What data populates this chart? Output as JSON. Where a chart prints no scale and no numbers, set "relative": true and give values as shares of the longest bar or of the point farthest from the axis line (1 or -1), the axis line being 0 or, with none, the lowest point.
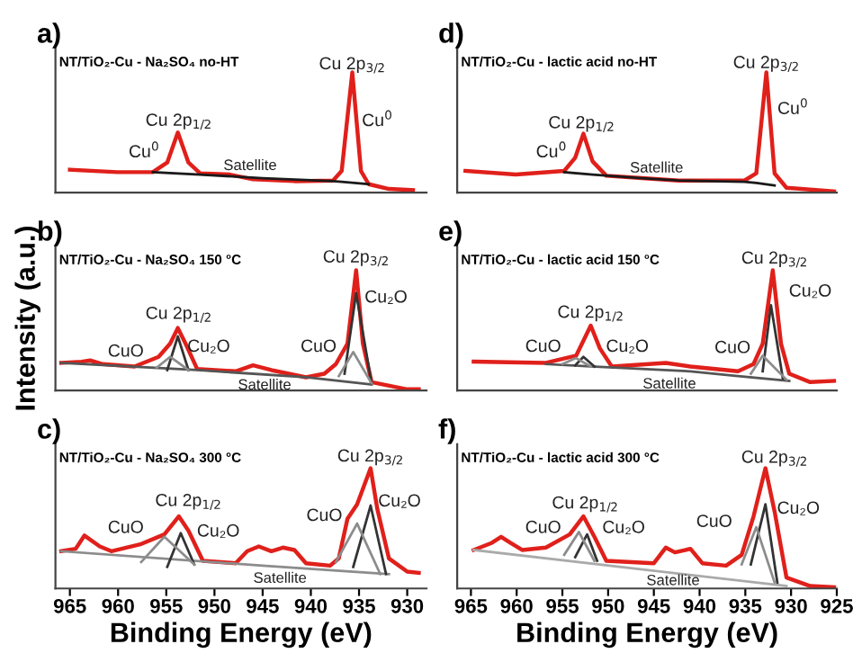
{
  "chart_data": [
    {
      "type": "line",
      "title": "a)",
      "subtitle": "NT/TiO₂-Cu - Na₂SO₄ no-HT",
      "relative": true,
      "xlim": [
        966.5,
        928
      ],
      "tick_labels": false,
      "series": [
        {
          "color": "#e0201b",
          "x": [
            965,
            960.1,
            956.4,
            954.9,
            953.8,
            952.7,
            951.5,
            948.4,
            946.0,
            941.7,
            937.7,
            936.8,
            935.7,
            934.8,
            934.0,
            931.9,
            929.4
          ],
          "values": [
            0.19,
            0.17,
            0.17,
            0.25,
            0.5,
            0.25,
            0.16,
            0.15,
            0.11,
            0.095,
            0.1,
            0.18,
            1.0,
            0.18,
            0.07,
            0.03,
            0.02
          ]
        },
        {
          "color": "#1a1a1a",
          "x": [
            956.4,
            951.5,
            945.0,
            937.7,
            936.8,
            934.0
          ],
          "values": [
            0.17,
            0.15,
            0.12,
            0.095,
            0.09,
            0.07
          ]
        }
      ],
      "annotations": [
        "Cu 2p$_{1/2}$",
        "Cu$^{0}$",
        "Satellite",
        "Cu 2p$_{3/2}$",
        "Cu$^{0}$"
      ]
    },
    {
      "type": "line",
      "title": "d)",
      "subtitle": "NT/TiO₂-Cu - lactic acid no-HT",
      "relative": true,
      "xlim": [
        966.5,
        925
      ],
      "tick_labels": false,
      "series": [
        {
          "color": "#e0201b",
          "x": [
            965.6,
            960.1,
            954.8,
            953.6,
            952.7,
            951.7,
            950.2,
            946.3,
            942.3,
            935.1,
            933.8,
            932.7,
            931.8,
            930.5,
            925.3
          ],
          "values": [
            0.18,
            0.15,
            0.18,
            0.29,
            0.49,
            0.26,
            0.14,
            0.12,
            0.1,
            0.1,
            0.16,
            1.0,
            0.16,
            0.04,
            0.01
          ]
        },
        {
          "color": "#1a1a1a",
          "x": [
            954.8,
            951.7,
            946.3,
            942.3,
            935.1,
            933.8,
            931.8
          ],
          "values": [
            0.17,
            0.15,
            0.12,
            0.1,
            0.09,
            0.08,
            0.06
          ]
        }
      ],
      "annotations": [
        "Cu 2p$_{1/2}$",
        "Cu$^{0}$",
        "Satellite",
        "Cu 2p$_{3/2}$",
        "Cu$^{0}$"
      ]
    },
    {
      "type": "line",
      "title": "b)",
      "subtitle": "NT/TiO₂-Cu - Na₂SO₄ 150 °C",
      "ylabel": "Intensity (a.u.)",
      "relative": true,
      "xlim": [
        966.5,
        928
      ],
      "tick_labels": false,
      "series": [
        {
          "color": "#e0201b",
          "x": [
            965.9,
            963.8,
            962.9,
            961.6,
            958.3,
            955.8,
            954.6,
            953.8,
            953.0,
            951.8,
            947.8,
            946.0,
            944.1,
            940.5,
            938.6,
            937.4,
            936.2,
            935.3,
            934.6,
            933.7,
            930.0,
            928.8
          ],
          "values": [
            0.23,
            0.24,
            0.25,
            0.22,
            0.2,
            0.28,
            0.39,
            0.52,
            0.39,
            0.18,
            0.16,
            0.21,
            0.17,
            0.11,
            0.14,
            0.22,
            0.39,
            1.0,
            0.39,
            0.07,
            0.01,
            0.01
          ]
        },
        {
          "color": "#555555",
          "x": [
            965.9,
            951.8,
            940.5,
            933.7
          ],
          "values": [
            0.23,
            0.17,
            0.11,
            0.05
          ]
        },
        {
          "color": "#333333",
          "x": [
            954.9,
            953.8,
            952.7,
            944.0,
            936.5,
            935.3,
            933.7
          ],
          "values": [
            0.17,
            0.45,
            0.17,
            null,
            0.14,
            0.81,
            0.06
          ]
        },
        {
          "color": "#8c8c8c",
          "x": [
            956.0,
            954.6,
            952.7,
            944.0,
            937.1,
            935.6,
            933.7
          ],
          "values": [
            0.19,
            0.28,
            0.17,
            null,
            0.12,
            0.32,
            0.06
          ]
        }
      ],
      "annotations": [
        "Cu 2p$_{1/2}$",
        "CuO",
        "Cu₂O",
        "Cu 2p$_{3/2}$",
        "Cu₂O",
        "CuO",
        "Satellite"
      ]
    },
    {
      "type": "line",
      "title": "e)",
      "subtitle": "NT/TiO₂-Cu - lactic acid 150 °C",
      "relative": true,
      "xlim": [
        966.5,
        925
      ],
      "tick_labels": false,
      "series": [
        {
          "color": "#e0201b",
          "x": [
            964.7,
            956.8,
            953.5,
            951.9,
            950.9,
            949.6,
            943.7,
            941.0,
            935.8,
            934.1,
            933.1,
            932.0,
            931.1,
            930.2,
            927.9,
            925.3
          ],
          "values": [
            0.24,
            0.23,
            0.29,
            0.54,
            0.35,
            0.2,
            0.23,
            0.2,
            0.16,
            0.22,
            0.39,
            1.0,
            0.39,
            0.14,
            0.07,
            0.08
          ]
        },
        {
          "color": "#555555",
          "x": [
            956.8,
            951.9,
            941.0,
            935.8,
            930.2
          ],
          "values": [
            0.22,
            0.2,
            0.16,
            0.12,
            0.08
          ]
        },
        {
          "color": "#333333",
          "x": [
            953.6,
            952.7,
            951.5,
            942.0,
            933.1,
            932.2,
            930.9
          ],
          "values": [
            0.21,
            0.28,
            0.2,
            null,
            0.16,
            0.71,
            0.1
          ]
        },
        {
          "color": "#8c8c8c",
          "x": [
            955.0,
            953.5,
            951.9,
            942.0,
            934.4,
            933.1,
            930.5
          ],
          "values": [
            0.22,
            0.27,
            0.2,
            null,
            0.14,
            0.29,
            0.09
          ]
        }
      ],
      "annotations": [
        "Cu 2p$_{1/2}$",
        "CuO",
        "Cu₂O",
        "Cu 2p$_{3/2}$",
        "Cu₂O",
        "CuO",
        "Satellite"
      ]
    },
    {
      "type": "line",
      "title": "c)",
      "subtitle": "NT/TiO₂-Cu - Na₂SO₄ 300 °C",
      "xlabel": "Binding Energy (eV)",
      "relative": true,
      "xlim": [
        966.5,
        928
      ],
      "xticks": [
        965,
        960,
        955,
        950,
        945,
        940,
        935,
        930
      ],
      "tick_labels": "x",
      "series": [
        {
          "color": "#e0201b",
          "x": [
            965.9,
            964.4,
            963.5,
            961.9,
            960.7,
            957.6,
            955.2,
            953.7,
            952.7,
            951.2,
            947.8,
            946.6,
            945.4,
            944.1,
            942.9,
            941.7,
            940.5,
            938.0,
            937.1,
            936.2,
            935.2,
            933.8,
            933.1,
            931.9,
            930.0,
            928.8
          ],
          "values": [
            0.31,
            0.33,
            0.44,
            0.35,
            0.31,
            0.37,
            0.45,
            0.6,
            0.48,
            0.23,
            0.21,
            0.31,
            0.35,
            0.31,
            0.34,
            0.32,
            0.21,
            0.19,
            0.25,
            0.58,
            0.7,
            1.0,
            0.66,
            0.25,
            0.14,
            0.13
          ]
        },
        {
          "color": "#8c8c8c",
          "x": [
            965.9,
            945.0,
            931.9
          ],
          "values": [
            0.31,
            0.19,
            0.12
          ]
        },
        {
          "color": "#333333",
          "x": [
            954.9,
            953.5,
            952.1,
            944.0,
            935.6,
            933.8,
            932.2
          ],
          "values": [
            0.18,
            0.46,
            0.2,
            null,
            0.18,
            0.69,
            0.12
          ]
        },
        {
          "color": "#8c8c8c",
          "x": [
            957.6,
            955.2,
            952.1,
            944.0,
            937.4,
            935.2,
            932.8
          ],
          "values": [
            0.22,
            0.43,
            0.2,
            null,
            0.22,
            0.54,
            0.12
          ]
        }
      ],
      "annotations": [
        "Cu 2p$_{1/2}$",
        "CuO",
        "Cu₂O",
        "Cu 2p$_{3/2}$",
        "Cu₂O",
        "CuO",
        "Satellite"
      ]
    },
    {
      "type": "line",
      "title": "f)",
      "subtitle": "NT/TiO₂-Cu - lactic acid 300 °C",
      "xlabel": "Binding Energy (eV)",
      "relative": true,
      "xlim": [
        966.5,
        925
      ],
      "xticks": [
        965,
        960,
        955,
        950,
        945,
        940,
        935,
        930,
        925
      ],
      "tick_labels": "x",
      "series": [
        {
          "color": "#e0201b",
          "x": [
            964.7,
            962.7,
            961.7,
            960.7,
            959.4,
            956.8,
            954.2,
            952.7,
            951.5,
            950.2,
            945.0,
            943.7,
            942.7,
            941.0,
            939.7,
            937.1,
            935.4,
            934.1,
            932.8,
            931.8,
            930.5,
            927.9,
            925.3
          ],
          "values": [
            0.32,
            0.38,
            0.43,
            0.38,
            0.32,
            0.34,
            0.45,
            0.6,
            0.43,
            0.23,
            0.21,
            0.34,
            0.3,
            0.33,
            0.21,
            0.19,
            0.28,
            0.6,
            1.0,
            0.64,
            0.09,
            0.02,
            0.01
          ]
        },
        {
          "color": "#aaaaaa",
          "x": [
            964.7,
            930.5
          ],
          "values": [
            0.32,
            0.02
          ]
        },
        {
          "color": "#333333",
          "x": [
            953.6,
            952.3,
            951.2,
            942.0,
            934.4,
            932.8,
            931.5
          ],
          "values": [
            0.26,
            0.45,
            0.23,
            null,
            0.2,
            0.7,
            0.05
          ]
        },
        {
          "color": "#8c8c8c",
          "x": [
            954.8,
            953.2,
            951.5,
            942.0,
            935.4,
            933.8,
            931.8
          ],
          "values": [
            0.28,
            0.47,
            0.23,
            null,
            0.2,
            0.51,
            0.05
          ]
        }
      ],
      "annotations": [
        "Cu 2p$_{1/2}$",
        "CuO",
        "Cu₂O",
        "Cu 2p$_{3/2}$",
        "Cu₂O",
        "CuO",
        "Satellite"
      ]
    }
  ]
}
